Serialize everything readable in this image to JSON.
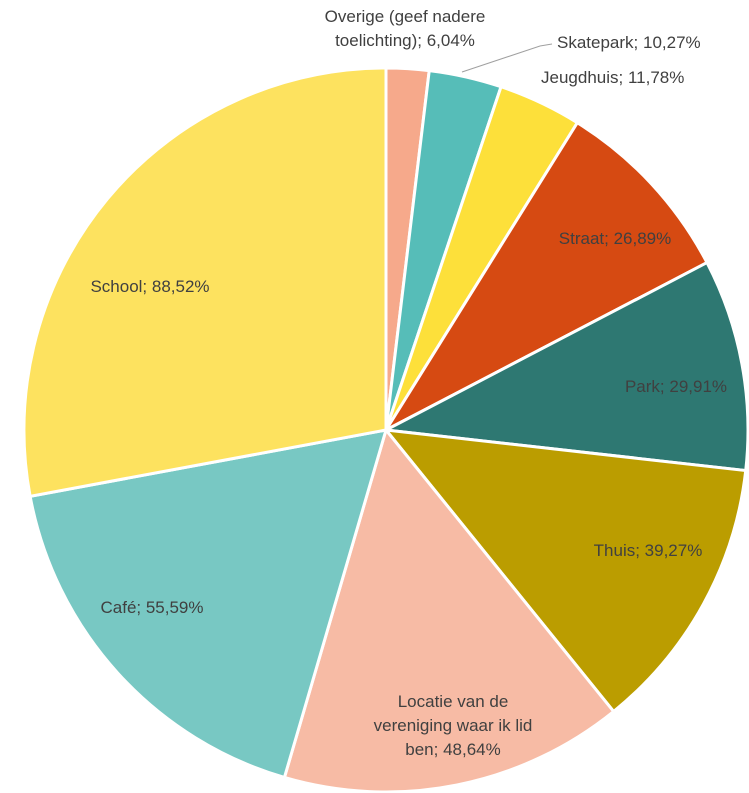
{
  "chart_data": {
    "type": "pie",
    "values": [
      6.04,
      10.27,
      11.78,
      26.89,
      29.91,
      39.27,
      48.64,
      55.59,
      88.52
    ],
    "value_labels": [
      [
        "Overige (geef nadere",
        "toelichting); 6,04%"
      ],
      [
        "Skatepark; 10,27%"
      ],
      [
        "Jeugdhuis; 11,78%"
      ],
      [
        "Straat; 26,89%"
      ],
      [
        "Park; 29,91%"
      ],
      [
        "Thuis; 39,27%"
      ],
      [
        "Locatie van de",
        "vereniging waar ik lid",
        "ben; 48,64%"
      ],
      [
        "Café; 55,59%"
      ],
      [
        "School; 88,52%"
      ]
    ],
    "colors": [
      "#f6a98b",
      "#56bdb8",
      "#fde03a",
      "#d64a12",
      "#2e7872",
      "#bb9d00",
      "#f7bba5",
      "#78c8c3",
      "#fde25f"
    ]
  }
}
